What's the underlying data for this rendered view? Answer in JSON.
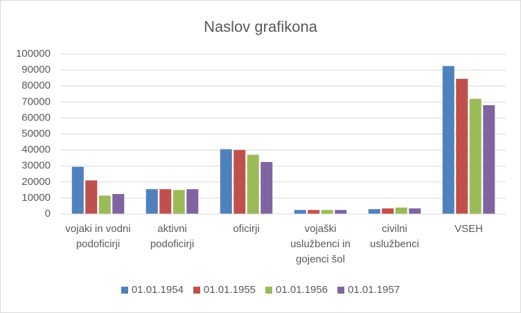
{
  "chart_data": {
    "type": "bar",
    "title": "Naslov grafikona",
    "categories": [
      "vojaki in vodni podoficirji",
      "aktivni podoficirji",
      "oficirji",
      "vojaški uslužbenci in gojenci šol",
      "civilni uslužbenci",
      "VSEH"
    ],
    "series": [
      {
        "name": "01.01.1954",
        "color": "#4f81bd",
        "values": [
          29500,
          15500,
          40500,
          2500,
          3000,
          92500
        ]
      },
      {
        "name": "01.01.1955",
        "color": "#c0504d",
        "values": [
          21000,
          15500,
          40000,
          2500,
          3500,
          84500
        ]
      },
      {
        "name": "01.01.1956",
        "color": "#9bbb59",
        "values": [
          11500,
          15000,
          37000,
          2500,
          4000,
          72000
        ]
      },
      {
        "name": "01.01.1957",
        "color": "#8064a2",
        "values": [
          12500,
          15500,
          32500,
          2500,
          3500,
          68000
        ]
      }
    ],
    "ylim": [
      0,
      100000
    ],
    "yticks": [
      0,
      10000,
      20000,
      30000,
      40000,
      50000,
      60000,
      70000,
      80000,
      90000,
      100000
    ],
    "grid": true,
    "legend": "bottom"
  }
}
